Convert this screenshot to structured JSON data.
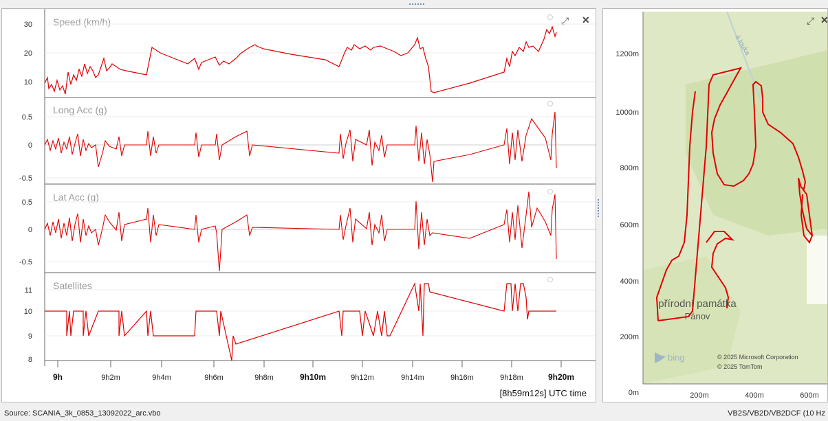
{
  "charts": [
    {
      "title": "Speed (km/h)",
      "yticks": [
        "30",
        "20",
        "10"
      ]
    },
    {
      "title": "Long Acc (g)",
      "yticks": [
        "0.5",
        "0",
        "-0.5"
      ]
    },
    {
      "title": "Lat Acc (g)",
      "yticks": [
        "0.5",
        "0",
        "-0.5"
      ]
    },
    {
      "title": "Satellites",
      "yticks": [
        "11",
        "10",
        "9",
        "8"
      ]
    }
  ],
  "time_axis": {
    "ticks": [
      "9h",
      "9h2m",
      "9h4m",
      "9h6m",
      "9h8m",
      "9h10m",
      "9h12m",
      "9h14m",
      "9h16m",
      "9h18m",
      "9h20m"
    ],
    "caption": "[8h59m12s] UTC time"
  },
  "map": {
    "yticks": [
      "1200m",
      "1000m",
      "800m",
      "600m",
      "400m",
      "200m",
      "0m"
    ],
    "xticks": [
      "200m",
      "400m",
      "600m"
    ],
    "road_label": "á louka",
    "place_name_line1": "přírodní památka",
    "place_name_line2": "Pánov",
    "bing_label": "bing",
    "copyright_line1": "© 2025 Microsoft Corporation",
    "copyright_line2": "© 2025 TomTom"
  },
  "status": {
    "source": "Source: SCANIA_3k_0853_13092022_arc.vbo",
    "right": "VB2S/VB2D/VB2DCF (10 Hz"
  },
  "icons": {
    "expand": "expand-icon",
    "close": "close-icon"
  },
  "colors": {
    "trace": "#e00000",
    "map_land": "#dfe8c4",
    "map_forest": "#d0dfae"
  }
}
